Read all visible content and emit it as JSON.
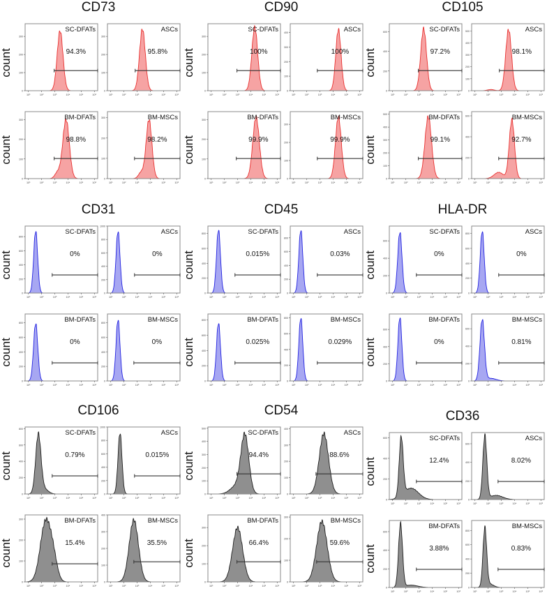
{
  "chart_data": {
    "type": "histogram-grid",
    "xlabel": "",
    "ylabel": "count",
    "x_scale": "log10",
    "xlim": [
      10,
      1000000
    ],
    "x_tick_labels": [
      "10¹",
      "10²",
      "10³",
      "10⁴",
      "10⁵",
      "10⁶"
    ],
    "colors": {
      "red": {
        "fill": "#f6a3a3",
        "stroke": "#e8302f"
      },
      "blue": {
        "fill": "#a7a7f2",
        "stroke": "#2222e0"
      },
      "gray": {
        "fill": "#8f8f8f",
        "stroke": "#1e1e1e"
      }
    },
    "markers": [
      {
        "name": "CD73",
        "color": "red",
        "panels": [
          {
            "sample": "SC-DFATs",
            "percent": "94.3%",
            "gate_start": 2.95,
            "yticks": [
              0,
              100,
              200,
              300
            ],
            "ymax": 370,
            "components": [
              [
                3.4,
                0.22,
                330
              ]
            ]
          },
          {
            "sample": "ASCs",
            "percent": "95.8%",
            "gate_start": 2.85,
            "yticks": [
              0,
              100,
              200,
              300
            ],
            "ymax": 370,
            "components": [
              [
                3.4,
                0.22,
                340
              ]
            ]
          },
          {
            "sample": "BM-DFATs",
            "percent": "98.8%",
            "gate_start": 2.95,
            "yticks": [
              0,
              100,
              200,
              300
            ],
            "ymax": 340,
            "components": [
              [
                3.85,
                0.25,
                300
              ],
              [
                3.2,
                0.2,
                30
              ]
            ]
          },
          {
            "sample": "BM-MSCs",
            "percent": "98.2%",
            "gate_start": 2.8,
            "yticks": [
              0,
              100,
              200,
              300
            ],
            "ymax": 330,
            "components": [
              [
                3.9,
                0.22,
                290
              ],
              [
                3.3,
                0.2,
                30
              ]
            ]
          }
        ]
      },
      {
        "name": "CD90",
        "color": "red",
        "panels": [
          {
            "sample": "SC-DFATs",
            "percent": "100%",
            "gate_start": 2.95,
            "yticks": [
              0,
              100,
              200,
              300
            ],
            "ymax": 370,
            "components": [
              [
                4.3,
                0.22,
                350
              ]
            ]
          },
          {
            "sample": "ASCs",
            "percent": "100%",
            "gate_start": 2.8,
            "yticks": [
              0,
              100,
              200,
              300,
              400
            ],
            "ymax": 460,
            "components": [
              [
                4.4,
                0.2,
                420
              ]
            ]
          },
          {
            "sample": "BM-DFATs",
            "percent": "99.9%",
            "gate_start": 2.9,
            "yticks": [
              0,
              100,
              200,
              300
            ],
            "ymax": 340,
            "components": [
              [
                4.4,
                0.25,
                310
              ]
            ]
          },
          {
            "sample": "BM-MSCs",
            "percent": "99.9%",
            "gate_start": 2.8,
            "yticks": [
              0,
              100,
              200,
              300
            ],
            "ymax": 370,
            "components": [
              [
                4.4,
                0.22,
                340
              ]
            ]
          }
        ]
      },
      {
        "name": "CD105",
        "color": "red",
        "panels": [
          {
            "sample": "SC-DFATs",
            "percent": "97.2%",
            "gate_start": 2.95,
            "yticks": [
              0,
              200,
              400,
              600
            ],
            "ymax": 680,
            "components": [
              [
                3.35,
                0.22,
                630
              ]
            ]
          },
          {
            "sample": "ASCs",
            "percent": "98.1%",
            "gate_start": 2.85,
            "yticks": [
              0,
              100,
              200,
              300,
              400,
              500
            ],
            "ymax": 560,
            "components": [
              [
                3.55,
                0.22,
                510
              ],
              [
                2.2,
                0.25,
                10
              ]
            ]
          },
          {
            "sample": "BM-DFATs",
            "percent": "99.1%",
            "gate_start": 2.95,
            "yticks": [
              0,
              100,
              200,
              300,
              400,
              500
            ],
            "ymax": 520,
            "components": [
              [
                3.7,
                0.25,
                480
              ]
            ]
          },
          {
            "sample": "BM-MSCs",
            "percent": "92.7%",
            "gate_start": 2.8,
            "yticks": [
              0,
              200,
              400,
              600
            ],
            "ymax": 640,
            "components": [
              [
                3.8,
                0.2,
                560
              ],
              [
                2.8,
                0.35,
                60
              ]
            ]
          }
        ]
      },
      {
        "name": "CD31",
        "color": "blue",
        "panels": [
          {
            "sample": "SC-DFATs",
            "percent": "0%",
            "gate_start": 2.8,
            "yticks": [
              0,
              200,
              400,
              600,
              800
            ],
            "ymax": 950,
            "components": [
              [
                1.55,
                0.15,
                880
              ]
            ]
          },
          {
            "sample": "ASCs",
            "percent": "0%",
            "gate_start": 2.8,
            "yticks": [
              0,
              200,
              400,
              600,
              800,
              1000
            ],
            "ymax": 1000,
            "components": [
              [
                1.55,
                0.15,
                920
              ]
            ]
          },
          {
            "sample": "BM-DFATs",
            "percent": "0%",
            "gate_start": 2.8,
            "yticks": [
              0,
              200,
              400,
              600,
              800
            ],
            "ymax": 920,
            "components": [
              [
                1.55,
                0.16,
                790
              ]
            ]
          },
          {
            "sample": "BM-MSCs",
            "percent": "0%",
            "gate_start": 2.75,
            "yticks": [
              0,
              200,
              400,
              600,
              800
            ],
            "ymax": 920,
            "components": [
              [
                1.55,
                0.15,
                840
              ]
            ]
          }
        ]
      },
      {
        "name": "CD45",
        "color": "blue",
        "panels": [
          {
            "sample": "SC-DFATs",
            "percent": "0.015%",
            "gate_start": 2.8,
            "yticks": [
              0,
              200,
              400,
              600,
              800
            ],
            "ymax": 900,
            "components": [
              [
                1.55,
                0.15,
                850
              ]
            ]
          },
          {
            "sample": "ASCs",
            "percent": "0.03%",
            "gate_start": 2.8,
            "yticks": [
              0,
              200,
              400,
              600,
              800
            ],
            "ymax": 970,
            "components": [
              [
                1.55,
                0.15,
                910
              ]
            ]
          },
          {
            "sample": "BM-DFATs",
            "percent": "0.025%",
            "gate_start": 2.8,
            "yticks": [
              0,
              200,
              400,
              600,
              800
            ],
            "ymax": 880,
            "components": [
              [
                1.55,
                0.15,
                760
              ]
            ]
          },
          {
            "sample": "BM-MSCs",
            "percent": "0.029%",
            "gate_start": 2.8,
            "yticks": [
              0,
              200,
              400,
              600,
              800
            ],
            "ymax": 850,
            "components": [
              [
                1.55,
                0.15,
                800
              ]
            ]
          }
        ]
      },
      {
        "name": "HLA-DR",
        "color": "blue",
        "panels": [
          {
            "sample": "SC-DFATs",
            "percent": "0%",
            "gate_start": 2.8,
            "yticks": [
              0,
              200,
              400,
              600
            ],
            "ymax": 770,
            "components": [
              [
                1.55,
                0.16,
                700
              ]
            ]
          },
          {
            "sample": "ASCs",
            "percent": "0%",
            "gate_start": 2.8,
            "yticks": [
              0,
              200,
              400,
              600,
              800
            ],
            "ymax": 900,
            "components": [
              [
                1.55,
                0.15,
                830
              ]
            ]
          },
          {
            "sample": "BM-DFATs",
            "percent": "0%",
            "gate_start": 2.8,
            "yticks": [
              0,
              200,
              400,
              600
            ],
            "ymax": 780,
            "components": [
              [
                1.55,
                0.15,
                740
              ]
            ]
          },
          {
            "sample": "BM-MSCs",
            "percent": "0.81%",
            "gate_start": 2.8,
            "yticks": [
              0,
              200,
              400,
              600
            ],
            "ymax": 770,
            "components": [
              [
                1.55,
                0.17,
                700
              ],
              [
                2.2,
                0.4,
                30
              ]
            ]
          }
        ]
      },
      {
        "name": "CD106",
        "color": "gray",
        "panels": [
          {
            "sample": "SC-DFATs",
            "percent": "0.79%",
            "gate_start": 2.8,
            "yticks": [
              0,
              200,
              400,
              600,
              800
            ],
            "ymax": 820,
            "components": [
              [
                1.75,
                0.2,
                720
              ],
              [
                2.2,
                0.3,
                60
              ]
            ]
          },
          {
            "sample": "ASCs",
            "percent": "0.015%",
            "gate_start": 2.8,
            "yticks": [
              0,
              200,
              400,
              600,
              800,
              1000
            ],
            "ymax": 1000,
            "components": [
              [
                1.7,
                0.15,
                910
              ]
            ]
          },
          {
            "sample": "BM-DFATs",
            "percent": "15.4%",
            "gate_start": 2.8,
            "yticks": [
              0,
              100,
              200,
              300
            ],
            "ymax": 320,
            "components": [
              [
                2.3,
                0.4,
                285
              ],
              [
                2.9,
                0.3,
                90
              ]
            ]
          },
          {
            "sample": "BM-MSCs",
            "percent": "35.5%",
            "gate_start": 2.75,
            "yticks": [
              0,
              100,
              200,
              300,
              400
            ],
            "ymax": 400,
            "components": [
              [
                2.75,
                0.35,
                370
              ]
            ]
          }
        ]
      },
      {
        "name": "CD54",
        "color": "gray",
        "panels": [
          {
            "sample": "SC-DFATs",
            "percent": "94.4%",
            "gate_start": 2.95,
            "yticks": [
              0,
              100,
              200,
              300,
              400,
              500
            ],
            "ymax": 510,
            "components": [
              [
                3.55,
                0.3,
                440
              ],
              [
                2.9,
                0.45,
                60
              ]
            ]
          },
          {
            "sample": "ASCs",
            "percent": "88.6%",
            "gate_start": 2.7,
            "yticks": [
              0,
              100,
              200,
              300,
              400
            ],
            "ymax": 410,
            "components": [
              [
                3.3,
                0.35,
                370
              ]
            ]
          },
          {
            "sample": "BM-DFATs",
            "percent": "66.4%",
            "gate_start": 2.95,
            "yticks": [
              0,
              100,
              200,
              300
            ],
            "ymax": 370,
            "components": [
              [
                3.0,
                0.38,
                300
              ]
            ]
          },
          {
            "sample": "BM-MSCs",
            "percent": "59.6%",
            "gate_start": 2.75,
            "yticks": [
              0,
              100,
              200,
              300
            ],
            "ymax": 310,
            "components": [
              [
                3.15,
                0.4,
                280
              ]
            ]
          }
        ]
      },
      {
        "name": "CD36",
        "color": "gray",
        "panels": [
          {
            "sample": "SC-DFATs",
            "percent": "12.4%",
            "gate_start": 2.8,
            "yticks": [
              0,
              200,
              400,
              600
            ],
            "ymax": 650,
            "components": [
              [
                1.65,
                0.15,
                570
              ],
              [
                2.4,
                0.55,
                110
              ]
            ]
          },
          {
            "sample": "ASCs",
            "percent": "8.02%",
            "gate_start": 2.75,
            "yticks": [
              0,
              200,
              400,
              600
            ],
            "ymax": 720,
            "components": [
              [
                1.75,
                0.15,
                680
              ],
              [
                2.6,
                0.5,
                45
              ]
            ]
          },
          {
            "sample": "BM-DFATs",
            "percent": "3.88%",
            "gate_start": 2.8,
            "yticks": [
              0,
              200,
              400,
              600
            ],
            "ymax": 720,
            "components": [
              [
                1.6,
                0.15,
                680
              ],
              [
                2.4,
                0.5,
                25
              ]
            ]
          },
          {
            "sample": "BM-MSCs",
            "percent": "0.83%",
            "gate_start": 2.75,
            "yticks": [
              0,
              200,
              400,
              600,
              800
            ],
            "ymax": 940,
            "components": [
              [
                1.75,
                0.14,
                820
              ],
              [
                2.1,
                0.3,
                50
              ]
            ]
          }
        ]
      }
    ]
  }
}
